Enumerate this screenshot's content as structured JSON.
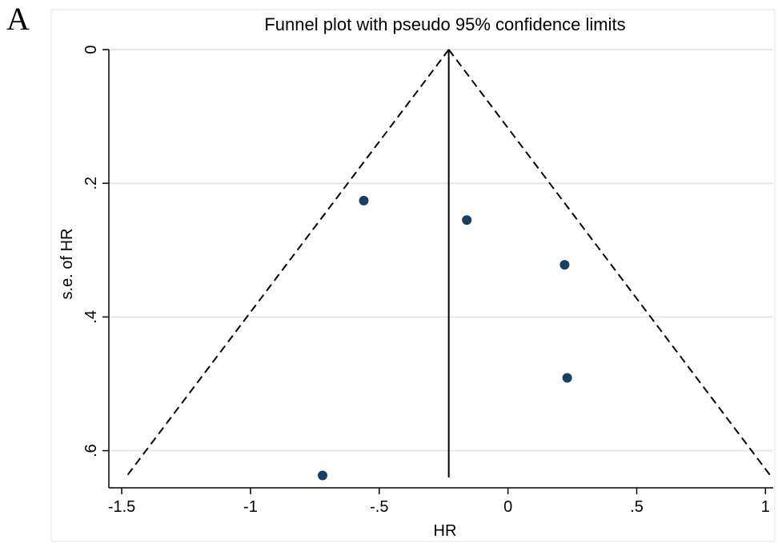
{
  "panel_label": "A",
  "chart_data": {
    "type": "scatter",
    "title": "Funnel plot with pseudo 95% confidence limits",
    "xlabel": "HR",
    "ylabel": "s.e. of HR",
    "xlim": [
      -1.55,
      1.03
    ],
    "ylim": [
      0,
      0.64
    ],
    "y_reversed": true,
    "x_ticks": [
      -1.5,
      -1,
      -0.5,
      0,
      0.5,
      1
    ],
    "x_tick_labels": [
      "-1.5",
      "-1",
      "-.5",
      "0",
      ".5",
      "1"
    ],
    "y_ticks": [
      0,
      0.2,
      0.4,
      0.6
    ],
    "y_tick_labels": [
      "0",
      ".2",
      ".4",
      ".6"
    ],
    "grid": "horizontal",
    "pooled_estimate": -0.23,
    "ci_multiplier": 1.96,
    "max_se": 0.64,
    "points": [
      {
        "x": -0.56,
        "y": 0.226
      },
      {
        "x": -0.16,
        "y": 0.255
      },
      {
        "x": 0.22,
        "y": 0.322
      },
      {
        "x": 0.23,
        "y": 0.491
      },
      {
        "x": -0.72,
        "y": 0.637
      }
    ],
    "colors": {
      "marker": "#1a3e66",
      "grid": "#dde9ea",
      "line": "#000000",
      "background": "#ffffff"
    }
  }
}
